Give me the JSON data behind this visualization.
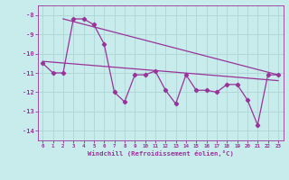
{
  "xlabel": "Windchill (Refroidissement éolien,°C)",
  "background_color": "#c8ecec",
  "grid_color": "#b0d8d8",
  "line_color": "#993399",
  "x_hours": [
    0,
    1,
    2,
    3,
    4,
    5,
    6,
    7,
    8,
    9,
    10,
    11,
    12,
    13,
    14,
    15,
    16,
    17,
    18,
    19,
    20,
    21,
    22,
    23
  ],
  "windchill_values": [
    -10.5,
    -11.0,
    -11.0,
    -8.2,
    -8.2,
    -8.5,
    -9.5,
    -12.0,
    -12.5,
    -11.1,
    -11.1,
    -10.9,
    -11.9,
    -12.6,
    -11.1,
    -11.9,
    -11.9,
    -12.0,
    -11.6,
    -11.6,
    -12.4,
    -13.7,
    -11.1,
    -11.1
  ],
  "trend1_x": [
    0,
    23
  ],
  "trend1_y": [
    -10.4,
    -11.4
  ],
  "trend2_x": [
    2,
    23
  ],
  "trend2_y": [
    -8.2,
    -11.1
  ],
  "ylim": [
    -14.5,
    -7.5
  ],
  "xlim": [
    -0.5,
    23.5
  ],
  "yticks": [
    -8,
    -9,
    -10,
    -11,
    -12,
    -13,
    -14
  ],
  "xticks": [
    0,
    1,
    2,
    3,
    4,
    5,
    6,
    7,
    8,
    9,
    10,
    11,
    12,
    13,
    14,
    15,
    16,
    17,
    18,
    19,
    20,
    21,
    22,
    23
  ]
}
